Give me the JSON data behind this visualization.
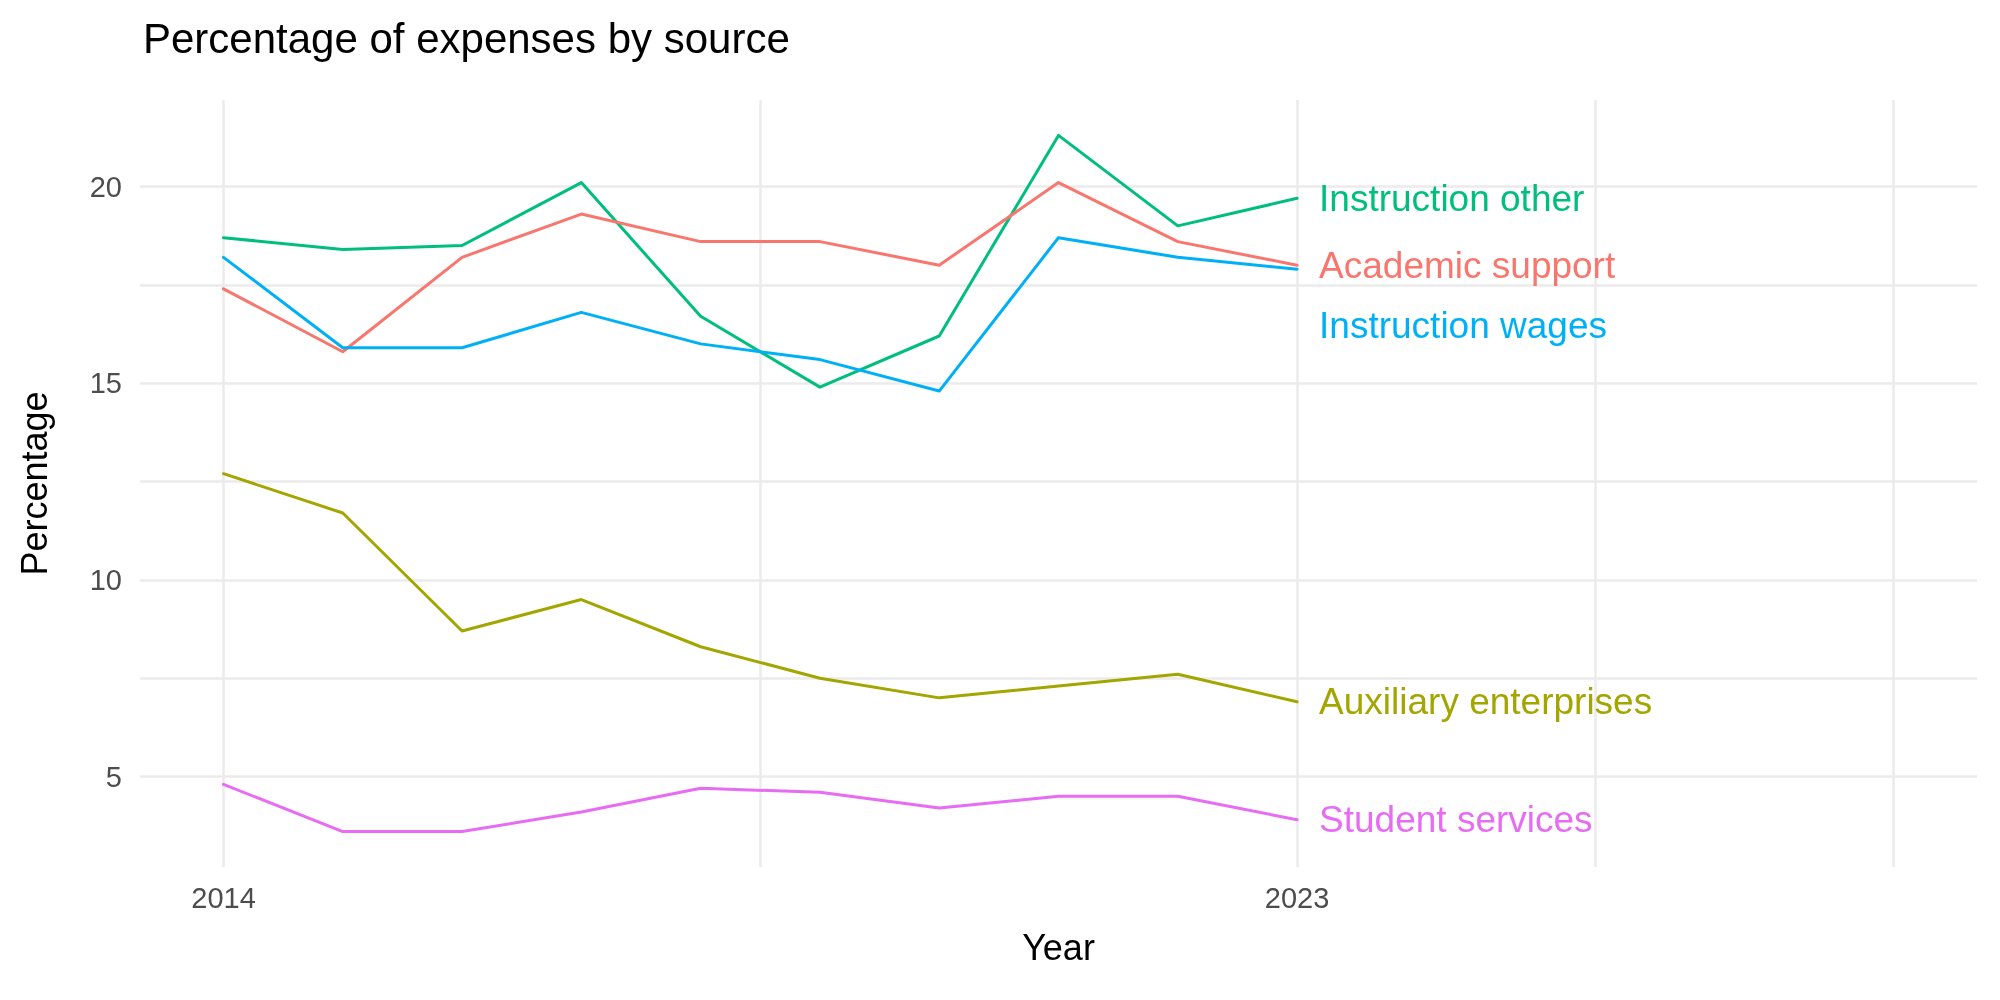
{
  "chart_data": {
    "type": "line",
    "title": "Percentage of expenses by source",
    "xlabel": "Year",
    "ylabel": "Percentage",
    "x": [
      2014,
      2015,
      2016,
      2017,
      2018,
      2019,
      2020,
      2021,
      2022,
      2023
    ],
    "series": [
      {
        "name": "Instruction other",
        "color": "#00bf7d",
        "values": [
          18.7,
          18.4,
          18.5,
          20.1,
          16.7,
          14.9,
          16.2,
          21.3,
          19.0,
          19.7
        ]
      },
      {
        "name": "Academic support",
        "color": "#f8766d",
        "values": [
          17.4,
          15.8,
          18.2,
          19.3,
          18.6,
          18.6,
          18.0,
          20.1,
          18.6,
          18.0
        ]
      },
      {
        "name": "Instruction wages",
        "color": "#00b0f6",
        "values": [
          18.2,
          15.9,
          15.9,
          16.8,
          16.0,
          15.6,
          14.8,
          18.7,
          18.2,
          17.9
        ]
      },
      {
        "name": "Auxiliary enterprises",
        "color": "#a3a500",
        "values": [
          12.7,
          11.7,
          8.7,
          9.5,
          8.3,
          7.5,
          7.0,
          7.3,
          7.6,
          6.9
        ]
      },
      {
        "name": "Student services",
        "color": "#e76bf3",
        "values": [
          4.8,
          3.6,
          3.6,
          4.1,
          4.7,
          4.6,
          4.2,
          4.5,
          4.5,
          3.9
        ]
      }
    ],
    "xlim": [
      2013.3,
      2028.7
    ],
    "xticks": [
      2014,
      {
        "value": 2018.5,
        "label": null
      },
      2023,
      {
        "value": 2025.5,
        "label": null
      },
      {
        "value": 2028,
        "label": null
      }
    ],
    "ylim": [
      2.7,
      22.2
    ],
    "yticks": [
      5,
      {
        "value": 7.5,
        "label": null
      },
      10,
      {
        "value": 12.5,
        "label": null
      },
      15,
      {
        "value": 17.5,
        "label": null
      },
      20
    ],
    "grid": true,
    "legend": false,
    "marker": "none",
    "line_style": "solid"
  }
}
